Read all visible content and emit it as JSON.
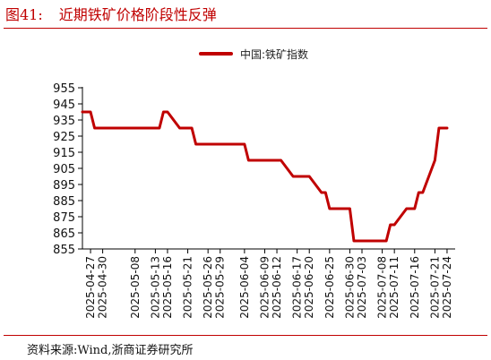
{
  "title": {
    "figure_number": "图41:",
    "text": "近期铁矿价格阶段性反弹"
  },
  "source_note": "资料来源:Wind,浙商证券研究所",
  "colors": {
    "accent": "#c00000",
    "axis": "#000000"
  },
  "chart_data": {
    "type": "line",
    "title": "近期铁矿价格阶段性反弹",
    "xlabel": "",
    "ylabel": "",
    "legend_position": "top-center",
    "grid": false,
    "ylim": [
      855,
      955
    ],
    "yticks": [
      855,
      865,
      875,
      885,
      895,
      905,
      915,
      925,
      935,
      945,
      955
    ],
    "xticks": [
      "2025-04-27",
      "2025-04-30",
      "2025-05-08",
      "2025-05-13",
      "2025-05-16",
      "2025-05-21",
      "2025-05-26",
      "2025-05-29",
      "2025-06-04",
      "2025-06-09",
      "2025-06-12",
      "2025-06-17",
      "2025-06-20",
      "2025-06-25",
      "2025-06-30",
      "2025-07-03",
      "2025-07-08",
      "2025-07-11",
      "2025-07-16",
      "2025-07-21",
      "2025-07-24"
    ],
    "series": [
      {
        "name": "中国:铁矿指数",
        "color": "#c00000",
        "points": [
          [
            "2025-04-25",
            940
          ],
          [
            "2025-04-27",
            940
          ],
          [
            "2025-04-28",
            930
          ],
          [
            "2025-04-29",
            930
          ],
          [
            "2025-04-30",
            930
          ],
          [
            "2025-05-06",
            930
          ],
          [
            "2025-05-07",
            930
          ],
          [
            "2025-05-08",
            930
          ],
          [
            "2025-05-09",
            930
          ],
          [
            "2025-05-12",
            930
          ],
          [
            "2025-05-13",
            930
          ],
          [
            "2025-05-14",
            930
          ],
          [
            "2025-05-15",
            940
          ],
          [
            "2025-05-16",
            940
          ],
          [
            "2025-05-19",
            930
          ],
          [
            "2025-05-20",
            930
          ],
          [
            "2025-05-21",
            930
          ],
          [
            "2025-05-22",
            930
          ],
          [
            "2025-05-23",
            920
          ],
          [
            "2025-05-26",
            920
          ],
          [
            "2025-05-27",
            920
          ],
          [
            "2025-05-28",
            920
          ],
          [
            "2025-05-29",
            920
          ],
          [
            "2025-05-30",
            920
          ],
          [
            "2025-06-03",
            920
          ],
          [
            "2025-06-04",
            920
          ],
          [
            "2025-06-05",
            910
          ],
          [
            "2025-06-06",
            910
          ],
          [
            "2025-06-09",
            910
          ],
          [
            "2025-06-10",
            910
          ],
          [
            "2025-06-11",
            910
          ],
          [
            "2025-06-12",
            910
          ],
          [
            "2025-06-13",
            910
          ],
          [
            "2025-06-16",
            900
          ],
          [
            "2025-06-17",
            900
          ],
          [
            "2025-06-18",
            900
          ],
          [
            "2025-06-19",
            900
          ],
          [
            "2025-06-20",
            900
          ],
          [
            "2025-06-23",
            890
          ],
          [
            "2025-06-24",
            890
          ],
          [
            "2025-06-25",
            880
          ],
          [
            "2025-06-26",
            880
          ],
          [
            "2025-06-27",
            880
          ],
          [
            "2025-06-30",
            880
          ],
          [
            "2025-07-01",
            860
          ],
          [
            "2025-07-02",
            860
          ],
          [
            "2025-07-03",
            860
          ],
          [
            "2025-07-04",
            860
          ],
          [
            "2025-07-07",
            860
          ],
          [
            "2025-07-08",
            860
          ],
          [
            "2025-07-09",
            860
          ],
          [
            "2025-07-10",
            870
          ],
          [
            "2025-07-11",
            870
          ],
          [
            "2025-07-14",
            880
          ],
          [
            "2025-07-15",
            880
          ],
          [
            "2025-07-16",
            880
          ],
          [
            "2025-07-17",
            890
          ],
          [
            "2025-07-18",
            890
          ],
          [
            "2025-07-21",
            910
          ],
          [
            "2025-07-22",
            930
          ],
          [
            "2025-07-23",
            930
          ],
          [
            "2025-07-24",
            930
          ]
        ]
      }
    ]
  }
}
